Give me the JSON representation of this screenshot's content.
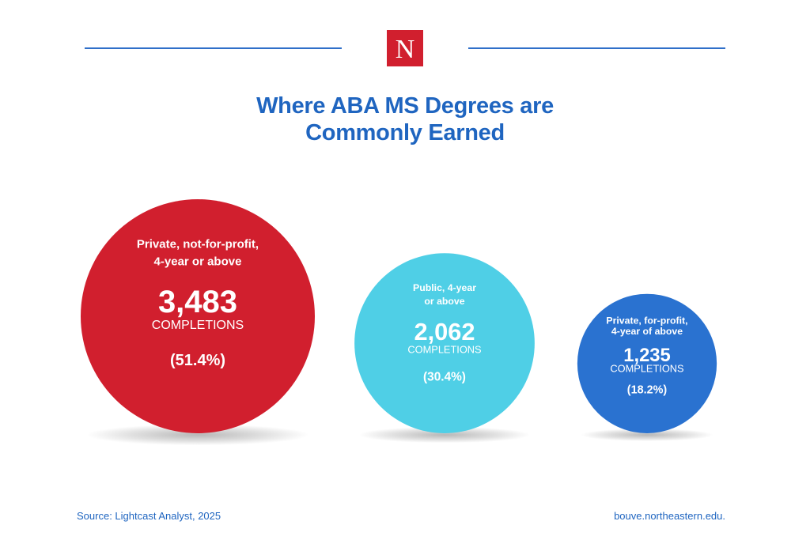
{
  "header": {
    "logo_letter": "N",
    "title_line1": "Where ABA MS Degrees are",
    "title_line2": "Commonly Earned"
  },
  "colors": {
    "accent_blue": "#1f65c0",
    "brand_red": "#d11f2e"
  },
  "chart_data": {
    "type": "bubble",
    "title": "Where ABA MS Degrees are Commonly Earned",
    "unit_label": "COMPLETIONS",
    "series": [
      {
        "label_line1": "Private, not-for-profit,",
        "label_line2": "4-year or above",
        "value": 3483,
        "value_text": "3,483",
        "unit": "COMPLETIONS",
        "percent": 51.4,
        "percent_text": "(51.4%)",
        "color": "#d11f2e"
      },
      {
        "label_line1": "Public, 4-year",
        "label_line2": "or above",
        "value": 2062,
        "value_text": "2,062",
        "unit": "COMPLETIONS",
        "percent": 30.4,
        "percent_text": "(30.4%)",
        "color": "#4fcfe6"
      },
      {
        "label_line1": "Private, for-profit,",
        "label_line2": "4-year of above",
        "value": 1235,
        "value_text": "1,235",
        "unit": "COMPLETIONS",
        "percent": 18.2,
        "percent_text": "(18.2%)",
        "color": "#2a72d0"
      }
    ]
  },
  "footer": {
    "source": "Source: Lightcast Analyst, 2025",
    "site": "bouve.northeastern.edu."
  }
}
